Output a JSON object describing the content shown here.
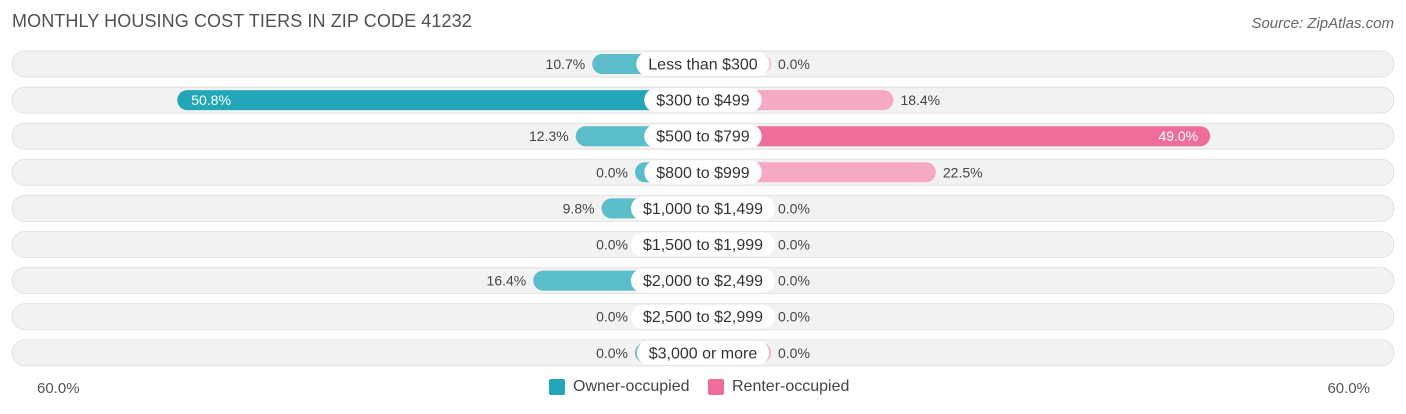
{
  "title": "MONTHLY HOUSING COST TIERS IN ZIP CODE 41232",
  "source": "Source: ZipAtlas.com",
  "colors": {
    "owner": "#5bbcca",
    "owner_strong": "#22a6b8",
    "renter": "#f7a8c4",
    "renter_strong": "#ef6e98",
    "row_bg": "#f1f1f1"
  },
  "axis": {
    "left_label": "60.0%",
    "right_label": "60.0%"
  },
  "legend": {
    "owner_label": "Owner-occupied",
    "renter_label": "Renter-occupied"
  },
  "chart_data": {
    "type": "bar",
    "orientation": "horizontal-diverging",
    "categories": [
      "Less than $300",
      "$300 to $499",
      "$500 to $799",
      "$800 to $999",
      "$1,000 to $1,499",
      "$1,500 to $1,999",
      "$2,000 to $2,499",
      "$2,500 to $2,999",
      "$3,000 or more"
    ],
    "series": [
      {
        "name": "Owner-occupied",
        "values": [
          10.7,
          50.8,
          12.3,
          0.0,
          9.8,
          0.0,
          16.4,
          0.0,
          0.0
        ],
        "labels": [
          "10.7%",
          "50.8%",
          "12.3%",
          "0.0%",
          "9.8%",
          "0.0%",
          "16.4%",
          "0.0%",
          "0.0%"
        ]
      },
      {
        "name": "Renter-occupied",
        "values": [
          0.0,
          18.4,
          49.0,
          22.5,
          0.0,
          0.0,
          0.0,
          0.0,
          0.0
        ],
        "labels": [
          "0.0%",
          "18.4%",
          "49.0%",
          "22.5%",
          "0.0%",
          "0.0%",
          "0.0%",
          "0.0%",
          "0.0%"
        ]
      }
    ],
    "xlim": [
      -60,
      60
    ],
    "legend_position": "bottom"
  }
}
